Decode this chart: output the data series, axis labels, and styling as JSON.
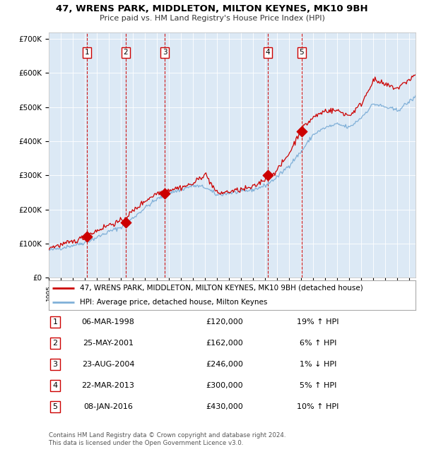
{
  "title": "47, WRENS PARK, MIDDLETON, MILTON KEYNES, MK10 9BH",
  "subtitle": "Price paid vs. HM Land Registry's House Price Index (HPI)",
  "hpi_label": "HPI: Average price, detached house, Milton Keynes",
  "property_label": "47, WRENS PARK, MIDDLETON, MILTON KEYNES, MK10 9BH (detached house)",
  "background_color": "#dce9f5",
  "plot_bg_color": "#dce9f5",
  "red_line_color": "#cc0000",
  "blue_line_color": "#80b0d8",
  "sale_marker_color": "#cc0000",
  "vline_color": "#cc0000",
  "footer_text": "Contains HM Land Registry data © Crown copyright and database right 2024.\nThis data is licensed under the Open Government Licence v3.0.",
  "sales": [
    {
      "num": 1,
      "date": "06-MAR-1998",
      "year": 1998.18,
      "price": 120000,
      "hpi_pct": "19% ↑ HPI"
    },
    {
      "num": 2,
      "date": "25-MAY-2001",
      "year": 2001.4,
      "price": 162000,
      "hpi_pct": "6% ↑ HPI"
    },
    {
      "num": 3,
      "date": "23-AUG-2004",
      "year": 2004.65,
      "price": 246000,
      "hpi_pct": "1% ↓ HPI"
    },
    {
      "num": 4,
      "date": "22-MAR-2013",
      "year": 2013.22,
      "price": 300000,
      "hpi_pct": "5% ↑ HPI"
    },
    {
      "num": 5,
      "date": "08-JAN-2016",
      "year": 2016.03,
      "price": 430000,
      "hpi_pct": "10% ↑ HPI"
    }
  ],
  "xlim": [
    1995.0,
    2025.5
  ],
  "ylim": [
    0,
    720000
  ],
  "yticks": [
    0,
    100000,
    200000,
    300000,
    400000,
    500000,
    600000,
    700000
  ],
  "ytick_labels": [
    "£0",
    "£100K",
    "£200K",
    "£300K",
    "£400K",
    "£500K",
    "£600K",
    "£700K"
  ],
  "hpi_anchors_x": [
    1995,
    1996,
    1997,
    1998,
    1999,
    2000,
    2001,
    2002,
    2003,
    2004,
    2005,
    2006,
    2007,
    2008,
    2009,
    2010,
    2011,
    2012,
    2013,
    2014,
    2015,
    2016,
    2017,
    2018,
    2019,
    2020,
    2021,
    2022,
    2023,
    2024,
    2025.5
  ],
  "hpi_anchors_y": [
    80000,
    87000,
    95000,
    103000,
    118000,
    135000,
    148000,
    175000,
    205000,
    230000,
    248000,
    258000,
    270000,
    265000,
    242000,
    248000,
    252000,
    258000,
    270000,
    295000,
    330000,
    370000,
    420000,
    440000,
    450000,
    440000,
    470000,
    510000,
    500000,
    490000,
    530000
  ],
  "red_anchors_x": [
    1995,
    1996,
    1997,
    1998,
    1999,
    2000,
    2001,
    2002,
    2003,
    2004,
    2005,
    2006,
    2007,
    2008,
    2009,
    2010,
    2011,
    2012,
    2013,
    2014,
    2015,
    2016,
    2017,
    2018,
    2019,
    2020,
    2021,
    2022,
    2023,
    2024,
    2025.5
  ],
  "red_anchors_y": [
    88000,
    96000,
    105000,
    120000,
    138000,
    155000,
    165000,
    195000,
    225000,
    248000,
    258000,
    265000,
    275000,
    305000,
    247000,
    252000,
    258000,
    265000,
    290000,
    315000,
    365000,
    435000,
    470000,
    490000,
    490000,
    475000,
    510000,
    580000,
    565000,
    555000,
    595000
  ]
}
